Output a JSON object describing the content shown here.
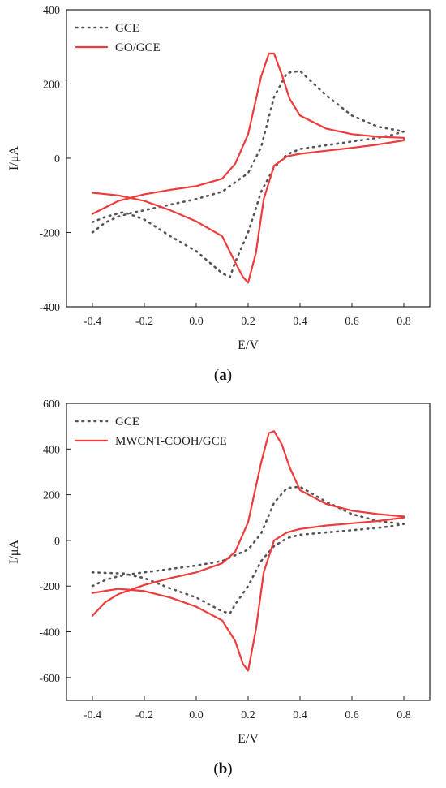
{
  "chart_data": [
    {
      "type": "line",
      "panel": "a",
      "caption_letter": "a",
      "xlabel": "E/V",
      "ylabel": "I/μA",
      "xlim": [
        -0.5,
        0.9
      ],
      "ylim": [
        -400,
        400
      ],
      "xticks": [
        -0.4,
        -0.2,
        0.0,
        0.2,
        0.4,
        0.6,
        0.8
      ],
      "xtick_labels": [
        "-0.4",
        "-0.2",
        "0.0",
        "0.2",
        "0.4",
        "0.6",
        "0.8"
      ],
      "yticks": [
        -400,
        -200,
        0,
        200,
        400
      ],
      "ytick_labels": [
        "-400",
        "-200",
        "0",
        "200",
        "400"
      ],
      "grid": false,
      "legend_position": "top-left",
      "series": [
        {
          "name": "GCE",
          "color": "#555555",
          "style": "dotted",
          "x": [
            -0.4,
            -0.35,
            -0.3,
            -0.25,
            -0.2,
            -0.1,
            0.0,
            0.1,
            0.2,
            0.25,
            0.3,
            0.35,
            0.4,
            0.5,
            0.6,
            0.7,
            0.8,
            0.8,
            0.75,
            0.7,
            0.6,
            0.5,
            0.4,
            0.35,
            0.3,
            0.25,
            0.2,
            0.15,
            0.13,
            0.1,
            0.05,
            0.0,
            -0.1,
            -0.2,
            -0.28,
            -0.35,
            -0.4
          ],
          "y": [
            -200,
            -173,
            -157,
            -147,
            -140,
            -125,
            -110,
            -90,
            -40,
            30,
            165,
            230,
            235,
            170,
            115,
            85,
            72,
            72,
            62,
            55,
            45,
            35,
            25,
            10,
            -25,
            -90,
            -200,
            -280,
            -320,
            -310,
            -280,
            -250,
            -210,
            -165,
            -145,
            -158,
            -172
          ]
        },
        {
          "name": "GO/GCE",
          "color": "#ee3b3b",
          "style": "solid",
          "x": [
            -0.4,
            -0.3,
            -0.2,
            -0.1,
            0.0,
            0.1,
            0.15,
            0.2,
            0.25,
            0.28,
            0.3,
            0.33,
            0.36,
            0.4,
            0.5,
            0.6,
            0.7,
            0.8,
            0.8,
            0.7,
            0.6,
            0.5,
            0.4,
            0.35,
            0.3,
            0.26,
            0.23,
            0.2,
            0.18,
            0.15,
            0.1,
            0.0,
            -0.1,
            -0.2,
            -0.3,
            -0.4
          ],
          "y": [
            -150,
            -115,
            -97,
            -85,
            -75,
            -55,
            -15,
            65,
            220,
            282,
            282,
            225,
            160,
            115,
            80,
            65,
            58,
            55,
            48,
            37,
            28,
            20,
            12,
            5,
            -20,
            -110,
            -255,
            -335,
            -320,
            -280,
            -210,
            -170,
            -140,
            -115,
            -100,
            -93
          ]
        }
      ]
    },
    {
      "type": "line",
      "panel": "b",
      "caption_letter": "b",
      "xlabel": "E/V",
      "ylabel": "I/μA",
      "xlim": [
        -0.5,
        0.9
      ],
      "ylim": [
        -700,
        600
      ],
      "xticks": [
        -0.4,
        -0.2,
        0.0,
        0.2,
        0.4,
        0.6,
        0.8
      ],
      "xtick_labels": [
        "-0.4",
        "-0.2",
        "0.0",
        "0.2",
        "0.4",
        "0.6",
        "0.8"
      ],
      "yticks": [
        -600,
        -400,
        -200,
        0,
        200,
        400,
        600
      ],
      "ytick_labels": [
        "-600",
        "-400",
        "-200",
        "0",
        "200",
        "400",
        "600"
      ],
      "grid": false,
      "legend_position": "top-left",
      "series": [
        {
          "name": "GCE",
          "color": "#555555",
          "style": "dotted",
          "x": [
            -0.4,
            -0.35,
            -0.3,
            -0.25,
            -0.2,
            -0.1,
            0.0,
            0.1,
            0.2,
            0.25,
            0.3,
            0.35,
            0.4,
            0.5,
            0.6,
            0.7,
            0.8,
            0.8,
            0.75,
            0.7,
            0.6,
            0.5,
            0.4,
            0.35,
            0.3,
            0.25,
            0.2,
            0.15,
            0.13,
            0.1,
            0.05,
            0.0,
            -0.1,
            -0.2,
            -0.28,
            -0.35,
            -0.4
          ],
          "y": [
            -200,
            -173,
            -157,
            -147,
            -140,
            -125,
            -110,
            -90,
            -40,
            30,
            165,
            230,
            235,
            170,
            115,
            85,
            72,
            72,
            62,
            55,
            45,
            35,
            25,
            10,
            -25,
            -90,
            -200,
            -280,
            -320,
            -310,
            -280,
            -250,
            -210,
            -165,
            -145,
            -142,
            -140
          ]
        },
        {
          "name": "MWCNT-COOH/GCE",
          "color": "#ee3b3b",
          "style": "solid",
          "x": [
            -0.4,
            -0.35,
            -0.3,
            -0.2,
            -0.1,
            0.0,
            0.1,
            0.15,
            0.2,
            0.25,
            0.28,
            0.3,
            0.33,
            0.36,
            0.4,
            0.5,
            0.6,
            0.7,
            0.8,
            0.8,
            0.7,
            0.6,
            0.5,
            0.4,
            0.35,
            0.3,
            0.26,
            0.23,
            0.2,
            0.18,
            0.15,
            0.1,
            0.0,
            -0.1,
            -0.2,
            -0.3,
            -0.4
          ],
          "y": [
            -330,
            -270,
            -235,
            -195,
            -165,
            -140,
            -100,
            -50,
            80,
            340,
            470,
            478,
            420,
            320,
            220,
            160,
            130,
            115,
            105,
            100,
            85,
            75,
            65,
            50,
            35,
            0,
            -140,
            -390,
            -570,
            -540,
            -440,
            -350,
            -290,
            -250,
            -222,
            -212,
            -230
          ]
        }
      ]
    }
  ]
}
